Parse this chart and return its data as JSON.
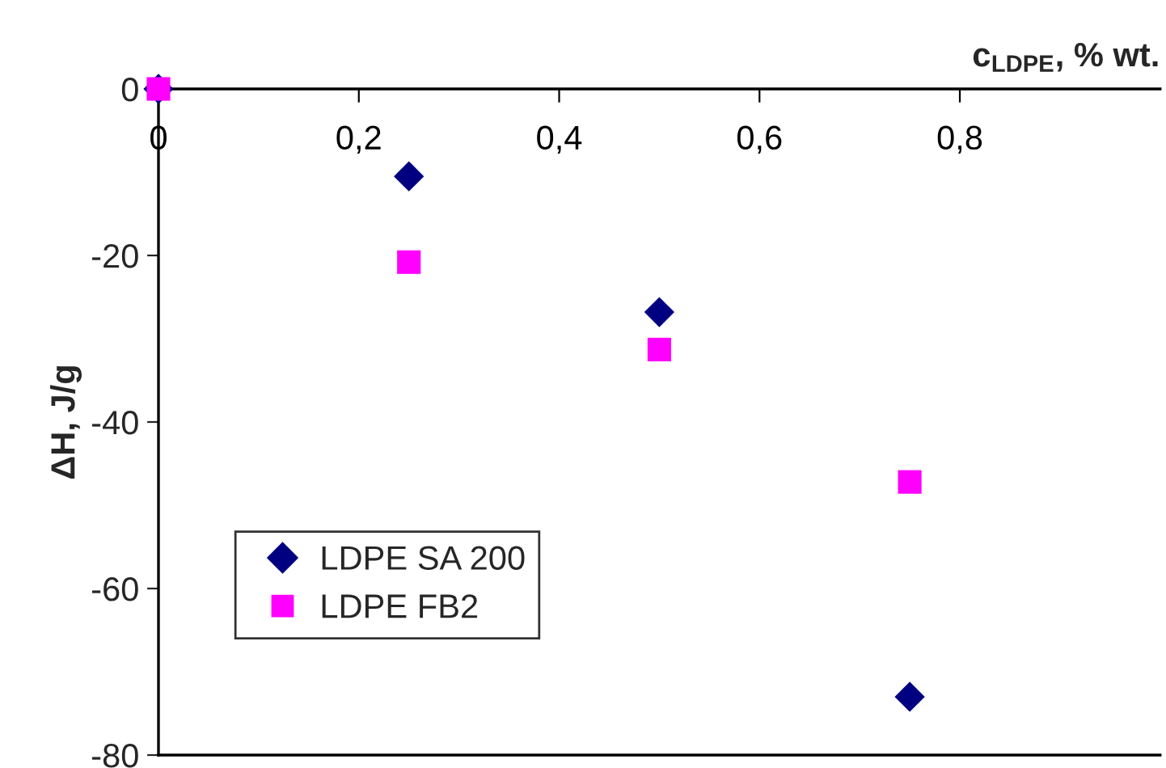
{
  "chart_data": {
    "type": "scatter",
    "xlabel": "c$_{LDPE}$, % wt.",
    "ylabel": "ΔH, J/g",
    "x": [
      0,
      0.25,
      0.5,
      0.75
    ],
    "series": [
      {
        "name": "LDPE SA 200",
        "color": "#000080",
        "marker": "diamond",
        "values": [
          0,
          -10.5,
          -26.8,
          -73
        ]
      },
      {
        "name": "LDPE FB2",
        "color": "#ff00ff",
        "marker": "square",
        "values": [
          0,
          -20.8,
          -31.3,
          -47.2
        ]
      }
    ],
    "xlim": [
      0,
      1
    ],
    "xticks": [
      0,
      {
        "value": 0.2,
        "label": "0,2"
      },
      {
        "value": 0.4,
        "label": "0,4"
      },
      {
        "value": 0.6,
        "label": "0,6"
      },
      {
        "value": 0.8,
        "label": "0,8"
      }
    ],
    "ylim": [
      -80,
      0
    ],
    "yticks": [
      -80,
      -60,
      -40,
      -20,
      0
    ],
    "grid": false,
    "legend": "bottom left"
  }
}
